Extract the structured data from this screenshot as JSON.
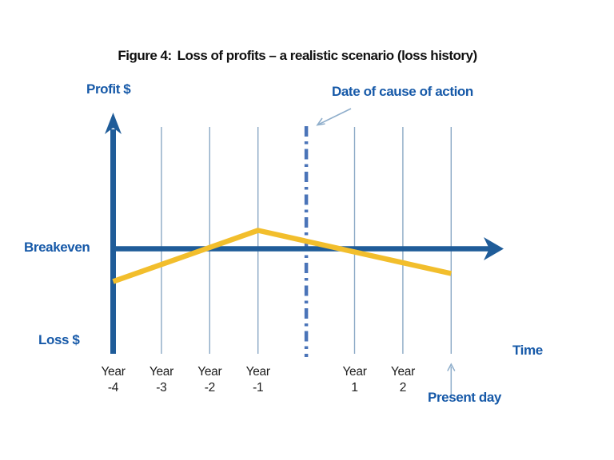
{
  "figure": {
    "title_prefix": "Figure 4:",
    "title_main": "Loss of profits – a realistic scenario (loss history)"
  },
  "axis_labels": {
    "profit": "Profit $",
    "loss": "Loss $",
    "time": "Time",
    "breakeven": "Breakeven"
  },
  "annotations": {
    "cause_of_action": "Date of cause of action",
    "present_day": "Present day"
  },
  "colors": {
    "title_text": "#111111",
    "label_blue": "#1659A8",
    "line_blue": "#1F5C99",
    "gridline_blue": "#8AA8C5",
    "cause_dash_blue": "#4A74B8",
    "annotation_arrow_blue": "#8FAECB",
    "profit_yellow": "#F2BE2C",
    "tick_text": "#1C1C1C"
  },
  "chart_data": {
    "type": "line",
    "title": "Figure 4: Loss of profits – a realistic scenario (loss history)",
    "x_axis_label": "Time",
    "y_axis_label_top": "Profit $",
    "y_axis_label_bottom": "Loss $",
    "breakeven_value": 0,
    "value_units": "profit relative to breakeven (breakeven = 0)",
    "x_ticks": [
      {
        "label": "Year\n-4",
        "year_index": 0
      },
      {
        "label": "Year\n-3",
        "year_index": 1
      },
      {
        "label": "Year\n-2",
        "year_index": 2
      },
      {
        "label": "Year\n-1",
        "year_index": 3
      },
      {
        "label": "Year\n1",
        "year_index": 5
      },
      {
        "label": "Year\n2",
        "year_index": 6
      }
    ],
    "gridline_year_indices": [
      1,
      2,
      3,
      5,
      6,
      7
    ],
    "cause_of_action_year_index": 4,
    "present_day_year_index": 7,
    "series": [
      {
        "name": "profit-history",
        "color": "#F2BE2C",
        "points": [
          {
            "x_label": "Year -4",
            "year_index": 0,
            "value": -0.41
          },
          {
            "x_label": "Year -1 (peak)",
            "year_index": 3,
            "value": 0.23
          },
          {
            "x_label": "Present day",
            "year_index": 7,
            "value": -0.31
          }
        ]
      }
    ],
    "legend": "off",
    "grid": "vertical-only"
  }
}
